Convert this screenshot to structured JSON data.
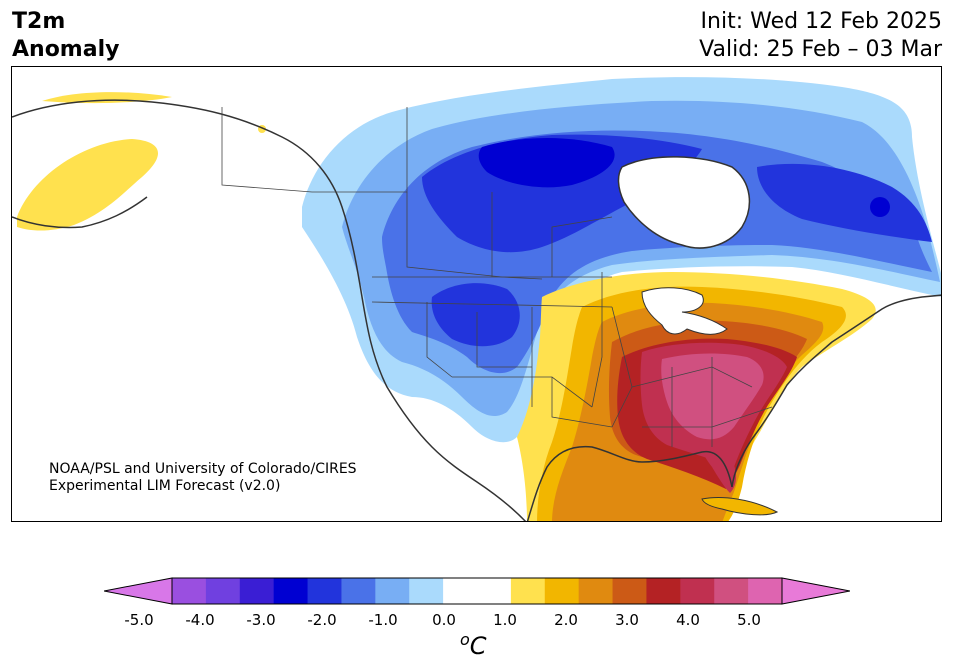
{
  "title": {
    "line1": "T2m",
    "line2": "Anomaly"
  },
  "dates": {
    "init": "Init: Wed 12 Feb 2025",
    "valid": "Valid: 25 Feb – 03 Mar"
  },
  "credit": {
    "line1": "NOAA/PSL and University of Colorado/CIRES",
    "line2": "Experimental LIM Forecast (v2.0)"
  },
  "colorbar": {
    "min": -5.0,
    "max": 5.0,
    "tick_labels": [
      "-5.0",
      "-4.0",
      "-3.0",
      "-2.0",
      "-1.0",
      "0.0",
      "1.0",
      "2.0",
      "3.0",
      "4.0",
      "5.0"
    ],
    "unit_symbol": "o",
    "unit_letter": "C",
    "colors": [
      "#9a4fe0",
      "#7040e0",
      "#3a1ed4",
      "#0000d2",
      "#2234dc",
      "#4a72e8",
      "#78aef4",
      "#aadafc",
      "#ffffff",
      "#ffffff",
      "#ffe14e",
      "#f2b600",
      "#e08a10",
      "#cc5a16",
      "#b42224",
      "#c03050",
      "#d05080",
      "#de64b0"
    ],
    "extend_low_color": "#d877e8",
    "extend_high_color": "#e87ad8"
  }
}
